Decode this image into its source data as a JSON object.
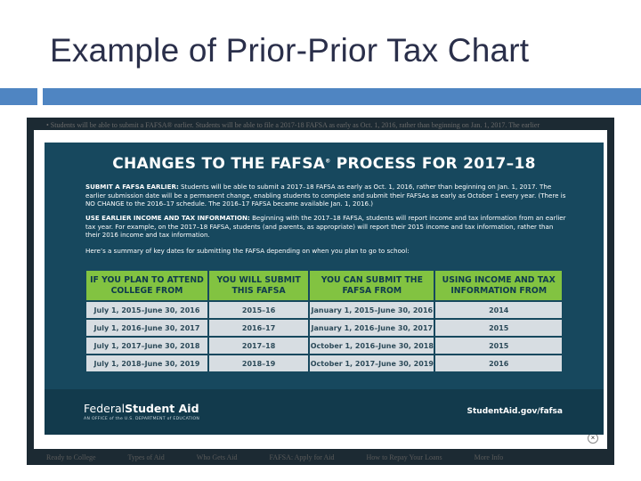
{
  "slide": {
    "title": "Example of Prior-Prior Tax Chart",
    "accent_color": "#4f85c2"
  },
  "background_page": {
    "top_text": "•  Students will be able to submit a FAFSA® earlier. Students will be able to file a 2017-18 FAFSA as early as Oct. 1, 2016, rather than beginning on Jan. 1, 2017. The earlier",
    "footer_links": [
      "Ready to College",
      "Types of Aid",
      "Who Gets Aid",
      "FAFSA: Apply for Aid",
      "How to Repay Your Loans",
      "More Info"
    ]
  },
  "modal": {
    "close_label": "×"
  },
  "infographic": {
    "heading": "CHANGES TO THE FAFSA",
    "heading_mark": "®",
    "heading_rest": " PROCESS FOR 2017–18",
    "para1_bold": "SUBMIT A FAFSA EARLIER:",
    "para1_text": " Students will be able to submit a 2017–18 FAFSA as early as Oct. 1, 2016, rather than beginning on Jan. 1, 2017. The earlier submission date will be a permanent change, enabling students to complete and submit their FAFSAs as early as October 1 every year. (There is NO CHANGE to the 2016–17 schedule. The 2016–17 FAFSA became available Jan. 1, 2016.)",
    "para2_bold": "USE EARLIER INCOME AND TAX INFORMATION:",
    "para2_text": " Beginning with the 2017–18 FAFSA, students will report income and tax information from an earlier tax year. For example, on the 2017–18 FAFSA, students (and parents, as appropriate) will report their 2015 income and tax information, rather than their 2016 income and tax information.",
    "para3": "Here’s a summary of key dates for submitting the FAFSA depending on when you plan to go to school:",
    "table": {
      "headers": [
        "IF YOU PLAN TO ATTEND COLLEGE FROM",
        "YOU WILL SUBMIT THIS FAFSA",
        "YOU CAN SUBMIT THE FAFSA FROM",
        "USING INCOME AND TAX INFORMATION FROM"
      ],
      "rows": [
        [
          "July 1, 2015–June 30, 2016",
          "2015–16",
          "January 1, 2015–June 30, 2016",
          "2014"
        ],
        [
          "July 1, 2016–June 30, 2017",
          "2016–17",
          "January 1, 2016–June 30, 2017",
          "2015"
        ],
        [
          "July 1, 2017–June 30, 2018",
          "2017–18",
          "October 1, 2016–June 30, 2018",
          "2015"
        ],
        [
          "July 1, 2018–June 30, 2019",
          "2018–19",
          "October 1, 2017–June 30, 2019",
          "2016"
        ]
      ]
    },
    "footer": {
      "brand_part1": "Federal",
      "brand_part2": "Student Aid",
      "brand_sub": "AN OFFICE of the U.S. DEPARTMENT of EDUCATION",
      "url": "StudentAid.gov/fafsa"
    },
    "colors": {
      "panel": "#17485e",
      "header_cell": "#82c341",
      "body_cell": "#d7dde2"
    }
  }
}
